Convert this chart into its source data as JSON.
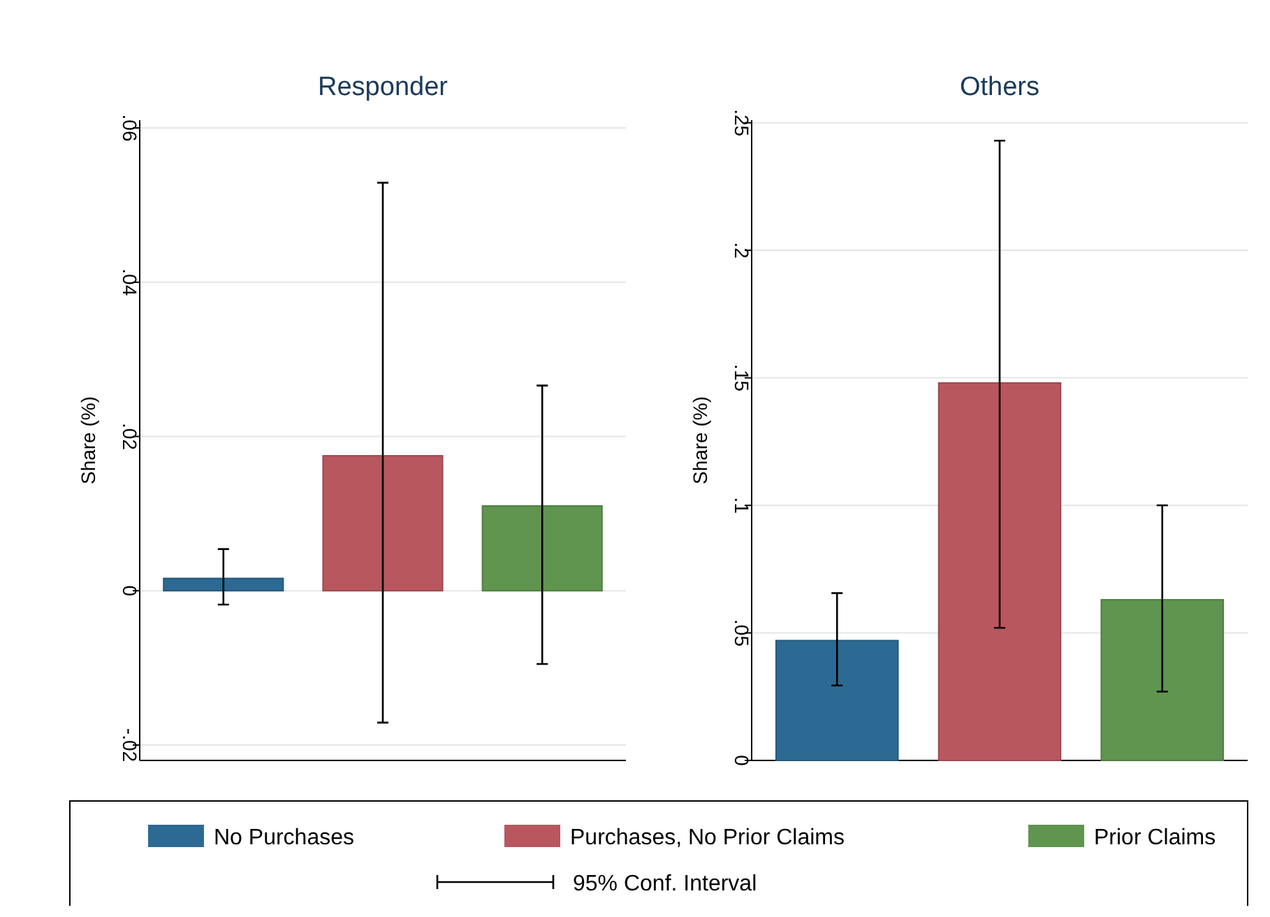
{
  "chart_data": [
    {
      "type": "bar",
      "title": "Responder",
      "ylabel": "Share (%)",
      "categories": [
        null
      ],
      "ylim": [
        -0.022,
        0.061
      ],
      "yticks": [
        {
          "value": -0.02,
          "label": "-.02"
        },
        {
          "value": 0,
          "label": "0"
        },
        {
          "value": 0.02,
          "label": ".02"
        },
        {
          "value": 0.04,
          "label": ".04"
        },
        {
          "value": 0.06,
          "label": ".06"
        }
      ],
      "grid": "y",
      "legend": "bottom",
      "annotations": [
        "95% Conf. Interval"
      ],
      "series": [
        {
          "name": "No Purchases",
          "color": "#2c6a93",
          "values": [
            0.0016
          ],
          "errors": [
            [
              -0.0018,
              0.0054
            ]
          ]
        },
        {
          "name": "Purchases, No Prior Claims",
          "color": "#b9575f",
          "values": [
            0.0175
          ],
          "errors": [
            [
              -0.0171,
              0.0529
            ]
          ]
        },
        {
          "name": "Prior Claims",
          "color": "#5f954f",
          "values": [
            0.011
          ],
          "errors": [
            [
              -0.0095,
              0.0266
            ]
          ]
        }
      ]
    },
    {
      "type": "bar",
      "title": "Others",
      "ylabel": "Share (%)",
      "categories": [
        null
      ],
      "ylim": [
        0,
        0.251
      ],
      "yticks": [
        {
          "value": 0,
          "label": "0"
        },
        {
          "value": 0.05,
          "label": ".05"
        },
        {
          "value": 0.1,
          "label": ".1"
        },
        {
          "value": 0.15,
          "label": ".15"
        },
        {
          "value": 0.2,
          "label": ".2"
        },
        {
          "value": 0.25,
          "label": ".25"
        }
      ],
      "grid": "y",
      "series": [
        {
          "color": "#2c6a93",
          "values": [
            0.047
          ],
          "errors": [
            [
              0.0294,
              0.0656
            ]
          ]
        },
        {
          "color": "#b9575f",
          "values": [
            0.148
          ],
          "errors": [
            [
              0.052,
              0.243
            ]
          ]
        },
        {
          "color": "#5f954f",
          "values": [
            0.063
          ],
          "errors": [
            [
              0.027,
              0.1
            ]
          ]
        }
      ]
    }
  ]
}
